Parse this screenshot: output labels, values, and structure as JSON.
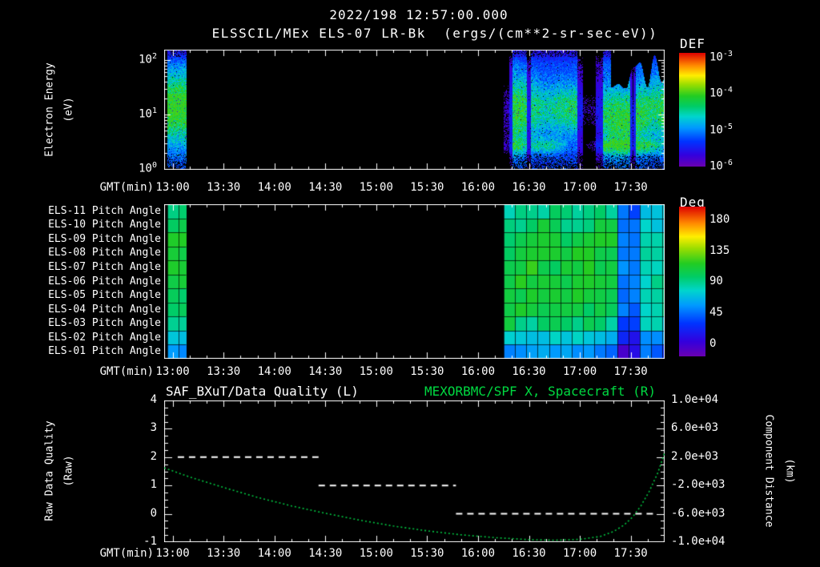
{
  "header": {
    "datetime": "2022/198 12:57:00.000",
    "title": "ELSSCIL/MEx ELS-07 LR-Bk  (ergs/(cm**2-sr-sec-eV))"
  },
  "time_axis": {
    "label": "GMT(min)",
    "start_min": 775,
    "end_min": 1070,
    "minor_tick_min": 10,
    "ticks": [
      {
        "min": 780,
        "label": "13:00"
      },
      {
        "min": 810,
        "label": "13:30"
      },
      {
        "min": 840,
        "label": "14:00"
      },
      {
        "min": 870,
        "label": "14:30"
      },
      {
        "min": 900,
        "label": "15:00"
      },
      {
        "min": 930,
        "label": "15:30"
      },
      {
        "min": 960,
        "label": "16:00"
      },
      {
        "min": 990,
        "label": "16:30"
      },
      {
        "min": 1020,
        "label": "17:00"
      },
      {
        "min": 1050,
        "label": "17:30"
      }
    ]
  },
  "colors": {
    "background": "#000000",
    "foreground": "#ffffff",
    "title_green": "#00d941",
    "curve_green": "#00c541",
    "rainbow_stops": [
      {
        "v": 0.0,
        "c": "#6a00b0"
      },
      {
        "v": 0.1,
        "c": "#3300dd"
      },
      {
        "v": 0.22,
        "c": "#0033ff"
      },
      {
        "v": 0.34,
        "c": "#0099ff"
      },
      {
        "v": 0.44,
        "c": "#00d5cc"
      },
      {
        "v": 0.53,
        "c": "#00cc66"
      },
      {
        "v": 0.62,
        "c": "#22cc22"
      },
      {
        "v": 0.72,
        "c": "#99dd00"
      },
      {
        "v": 0.8,
        "c": "#ffee00"
      },
      {
        "v": 0.89,
        "c": "#ff8800"
      },
      {
        "v": 1.0,
        "c": "#dd0000"
      }
    ]
  },
  "chart_data": {
    "top_spectrogram": {
      "type": "heatmap",
      "y_axis": {
        "title": "Electron Energy",
        "units": "(eV)",
        "scale": "log",
        "ticks": [
          {
            "mant": "10",
            "exp": "2"
          },
          {
            "mant": "10",
            "exp": "1"
          },
          {
            "mant": "10",
            "exp": "0"
          }
        ]
      },
      "colorbar": {
        "label": "DEF",
        "ticks": [
          {
            "mant": "10",
            "exp": "-3"
          },
          {
            "mant": "10",
            "exp": "-4"
          },
          {
            "mant": "10",
            "exp": "-5"
          },
          {
            "mant": "10",
            "exp": "-6"
          }
        ]
      },
      "segments": [
        {
          "t0": 777,
          "t1": 788,
          "type": "burst",
          "peak_energy_ev": 8,
          "peak_def": 0.0001
        },
        {
          "t0": 975,
          "t1": 1070,
          "type": "active",
          "peak_def": 0.0001
        }
      ]
    },
    "pitch_angle_panel": {
      "type": "heatmap",
      "rows": [
        "ELS-11 Pitch Angle",
        "ELS-10 Pitch Angle",
        "ELS-09 Pitch Angle",
        "ELS-08 Pitch Angle",
        "ELS-07 Pitch Angle",
        "ELS-06 Pitch Angle",
        "ELS-05 Pitch Angle",
        "ELS-04 Pitch Angle",
        "ELS-03 Pitch Angle",
        "ELS-02 Pitch Angle",
        "ELS-01 Pitch Angle"
      ],
      "row_base_angles_deg": [
        88,
        97,
        101,
        103,
        104,
        104,
        102,
        99,
        94,
        76,
        60
      ],
      "colorbar": {
        "label": "Deg",
        "ticks": [
          "180",
          "135",
          "90",
          "45",
          "0"
        ]
      },
      "segments": [
        {
          "t0": 777,
          "t1": 788
        },
        {
          "t0": 975,
          "t1": 1070
        }
      ],
      "blue_band": {
        "t0": 1043,
        "t1": 1056,
        "delta_deg": -42
      },
      "tail": {
        "t0": 1056,
        "t1": 1070,
        "delta_deg": -14
      },
      "cell_minutes": 6.7
    },
    "bottom_panel": {
      "type": "line",
      "title_left": "SAF_BXuT/Data Quality (L)",
      "title_right": "MEXORBMC/SPF X, Spacecraft (R)",
      "left_axis": {
        "title": "Raw Data Quality",
        "units": "(Raw)",
        "min": -1,
        "max": 4,
        "ticks": [
          "4",
          "3",
          "2",
          "1",
          "0",
          "-1"
        ]
      },
      "right_axis": {
        "title": "Component Distance",
        "units": "(km)",
        "min": -10000,
        "max": 10000,
        "ticks": [
          "1.0e+04",
          "6.0e+03",
          "2.0e+03",
          "-2.0e+03",
          "-6.0e+03",
          "-1.0e+04"
        ]
      },
      "series": [
        {
          "name": "Raw Data Quality",
          "style": "dashed",
          "color": "#ffffff",
          "axis": "left",
          "segments": [
            {
              "t0": 783,
              "t1": 866,
              "value": 2
            },
            {
              "t0": 866,
              "t1": 947,
              "value": 1
            },
            {
              "t0": 947,
              "t1": 1065,
              "value": 0
            }
          ]
        },
        {
          "name": "Spacecraft X Component",
          "style": "dotted",
          "color": "#00c541",
          "axis": "right",
          "points_min_km": [
            [
              775,
              480
            ],
            [
              790,
              -800
            ],
            [
              810,
              -2280
            ],
            [
              830,
              -3680
            ],
            [
              850,
              -4880
            ],
            [
              870,
              -5920
            ],
            [
              890,
              -6880
            ],
            [
              910,
              -7720
            ],
            [
              930,
              -8400
            ],
            [
              950,
              -8960
            ],
            [
              970,
              -9360
            ],
            [
              990,
              -9640
            ],
            [
              1005,
              -9720
            ],
            [
              1020,
              -9600
            ],
            [
              1032,
              -9200
            ],
            [
              1040,
              -8480
            ],
            [
              1046,
              -7600
            ],
            [
              1051,
              -6480
            ],
            [
              1056,
              -4880
            ],
            [
              1061,
              -2800
            ],
            [
              1066,
              -200
            ],
            [
              1070,
              2600
            ]
          ]
        }
      ]
    }
  }
}
